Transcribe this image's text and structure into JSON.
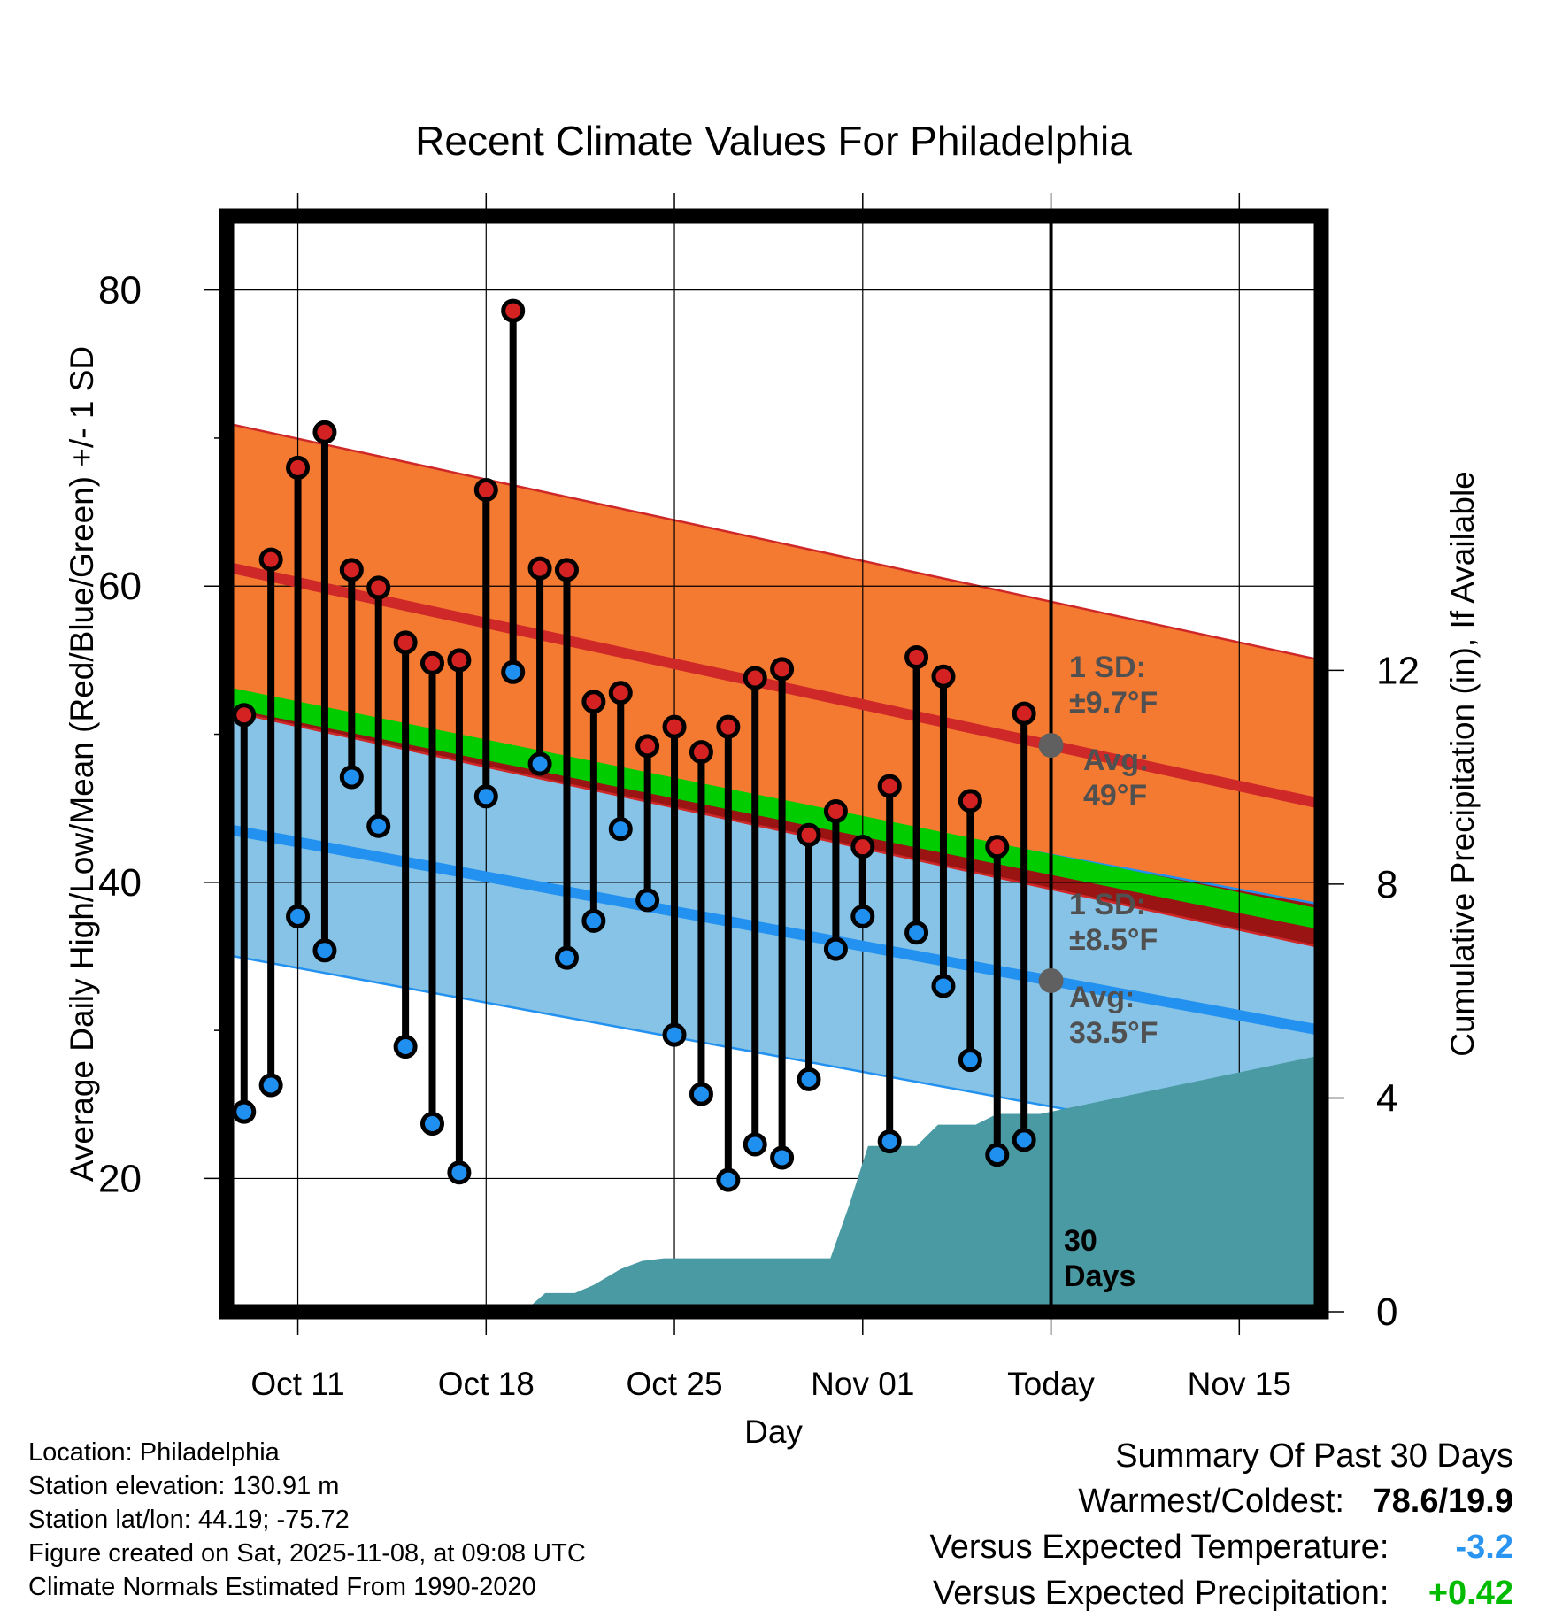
{
  "chart_data": {
    "type": "climate-range",
    "title": "Recent Climate Values For Philadelphia",
    "xlabel": "Day",
    "ylabel": "Average Daily High/Low/Mean (Red/Blue/Green) +/- 1 SD",
    "y2label": "Cumulative Precipitation (in), If Available",
    "ylim": [
      11,
      85
    ],
    "y2lim": [
      0,
      20.5
    ],
    "yticks": [
      20,
      40,
      60,
      80
    ],
    "y2ticks": [
      0,
      4,
      8,
      12
    ],
    "xlim": [
      -0.65,
      40.05
    ],
    "xticks": [
      {
        "day": 2,
        "label": "Oct 11"
      },
      {
        "day": 9,
        "label": "Oct 18"
      },
      {
        "day": 16,
        "label": "Oct 25"
      },
      {
        "day": 23,
        "label": "Nov 01"
      },
      {
        "day": 30,
        "label": "Today"
      },
      {
        "day": 37,
        "label": "Nov 15"
      }
    ],
    "today_day": 30,
    "days": [
      0,
      1,
      2,
      3,
      4,
      5,
      6,
      7,
      8,
      9,
      10,
      11,
      12,
      13,
      14,
      15,
      16,
      17,
      18,
      19,
      20,
      21,
      22,
      23,
      24,
      25,
      26,
      27,
      28,
      29
    ],
    "highs": [
      51.3,
      61.8,
      68.0,
      70.4,
      61.1,
      59.9,
      56.2,
      54.8,
      55.0,
      66.5,
      78.6,
      61.2,
      61.1,
      52.2,
      52.8,
      49.2,
      50.5,
      48.8,
      50.5,
      53.8,
      54.4,
      43.2,
      44.8,
      42.4,
      46.5,
      55.2,
      53.9,
      45.5,
      42.4,
      51.4
    ],
    "lows": [
      24.5,
      26.3,
      37.7,
      35.4,
      47.1,
      43.8,
      28.9,
      23.7,
      20.4,
      45.8,
      54.2,
      48.0,
      34.9,
      37.4,
      43.6,
      38.8,
      29.7,
      25.7,
      19.9,
      22.3,
      21.4,
      26.7,
      35.5,
      37.7,
      22.5,
      36.6,
      33.0,
      28.0,
      21.6,
      22.6
    ],
    "normal_high": {
      "x": [
        -0.65,
        40.05
      ],
      "avg": [
        61.3,
        45.3
      ],
      "sd": 9.7
    },
    "normal_low": {
      "x": [
        -0.65,
        40.05
      ],
      "avg": [
        43.6,
        30.0
      ],
      "sd": 8.5
    },
    "normal_mean": {
      "x": [
        -0.65,
        40.05
      ],
      "avg": [
        52.5,
        37.5
      ]
    },
    "annotations": {
      "high_sd": [
        "1 SD:",
        "±9.7°F"
      ],
      "high_avg": [
        "Avg:",
        "49°F"
      ],
      "low_sd": [
        "1 SD:",
        "±8.5°F"
      ],
      "low_avg": [
        "Avg:",
        "33.5°F"
      ],
      "window": [
        "30",
        "Days"
      ]
    },
    "precip": {
      "x": [
        10.4,
        11.2,
        12.3,
        13.0,
        14.0,
        14.8,
        15.6,
        16.4,
        17.6,
        18.2,
        19.0,
        20.0,
        21.1,
        21.8,
        22.5,
        23.2,
        24.0,
        25.0,
        25.8,
        26.6,
        27.2,
        28.0,
        28.8,
        29.6,
        40.05
      ],
      "values": [
        0.0,
        0.35,
        0.35,
        0.5,
        0.8,
        0.95,
        1.0,
        1.0,
        1.0,
        1.0,
        1.0,
        1.0,
        1.0,
        1.0,
        2.0,
        3.1,
        3.1,
        3.1,
        3.5,
        3.5,
        3.5,
        3.7,
        3.7,
        3.7,
        4.8
      ]
    },
    "colors": {
      "high_band": "#f47a31",
      "high_line": "#cf2828",
      "low_band": "#86c3e6",
      "low_line": "#2391f0",
      "mean_band": "#00cc00",
      "overlap": "#9a1414",
      "precip": "#4a9aa3",
      "high_dot": "#d42222",
      "low_dot": "#2090f0",
      "marker": "#606060",
      "anno": "#505050",
      "plus": "#00bb00"
    }
  },
  "info": {
    "location": "Location: Philadelphia",
    "elevation": "Station elevation: 130.91 m",
    "latlon": "Station lat/lon: 44.19; -75.72",
    "created": "Figure created on Sat, 2025-11-08, at 09:08 UTC",
    "normals": "Climate Normals Estimated From 1990-2020"
  },
  "summary": {
    "heading": "Summary Of Past 30 Days",
    "warmest_label": "Warmest/Coldest:",
    "warmest_value": "78.6/19.9",
    "temp_label": "Versus Expected Temperature:",
    "temp_value": "-3.2",
    "precip_label": "Versus Expected Precipitation:",
    "precip_value": "+0.42"
  }
}
